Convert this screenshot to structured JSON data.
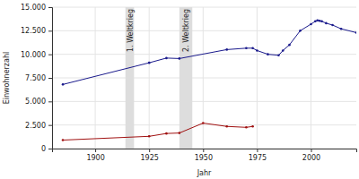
{
  "chart_data": {
    "type": "line",
    "x_label": "Jahr",
    "y_label": "Einwohnerzahl",
    "xlim": [
      1880,
      2021
    ],
    "xticks": [
      1900,
      1925,
      1950,
      1975,
      2000
    ],
    "ylim": [
      0,
      15000
    ],
    "yticks": [
      0,
      {
        "value": 2500,
        "label": "2.500"
      },
      {
        "value": 5000,
        "label": "5.000"
      },
      {
        "value": 7500,
        "label": "7.500"
      },
      {
        "value": 10000,
        "label": "10.000"
      },
      {
        "value": 12500,
        "label": "12.500"
      },
      {
        "value": 15000,
        "label": "15.000"
      }
    ],
    "grid": true,
    "annotations": [
      {
        "label": "1. Weltkrieg",
        "x": [
          1914,
          1918
        ]
      },
      {
        "label": "2. Weltkrieg",
        "x": [
          1939,
          1945
        ]
      }
    ],
    "series": [
      {
        "color": "#1a1a8c",
        "marker": "circle",
        "x": [
          1885,
          1925,
          1933,
          1939,
          1961,
          1970,
          1973,
          1975,
          1980,
          1985,
          1987,
          1990,
          1995,
          2000,
          2002,
          2003,
          2004,
          2005,
          2007,
          2010,
          2014,
          2021
        ],
        "values": [
          6800,
          9100,
          9600,
          9550,
          10500,
          10650,
          10650,
          10400,
          10000,
          9900,
          10400,
          11000,
          12500,
          13200,
          13500,
          13600,
          13550,
          13500,
          13300,
          13100,
          12700,
          12300
        ]
      },
      {
        "color": "#a01010",
        "marker": "circle",
        "x": [
          1885,
          1925,
          1933,
          1939,
          1950,
          1961,
          1970,
          1973
        ],
        "values": [
          900,
          1300,
          1600,
          1650,
          2700,
          2350,
          2250,
          2350
        ]
      }
    ]
  }
}
